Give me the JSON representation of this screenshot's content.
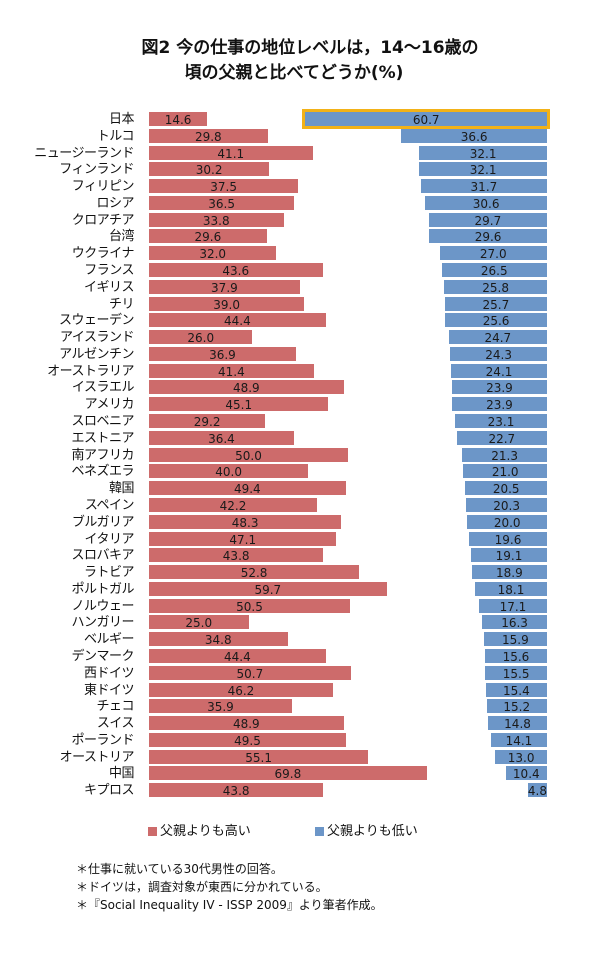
{
  "title": {
    "line1": "図2 今の仕事の地位レベルは，14～16歳の",
    "line2": "頃の父親と比べてどうか(%)"
  },
  "legend": {
    "higher": {
      "label": "父親よりも高い",
      "color": "#cd6b6b"
    },
    "lower": {
      "label": "父親よりも低い",
      "color": "#6c96c8"
    }
  },
  "notes": [
    "＊仕事に就いている30代男性の回答。",
    "＊ドイツは，調査対象が東西に分かれている。",
    "＊『Social Inequality IV - ISSP 2009』より筆者作成。"
  ],
  "highlight": {
    "country": "日本",
    "color": "#f2b218"
  },
  "chart_data": {
    "type": "bar",
    "orientation": "horizontal",
    "title": "図2 今の仕事の地位レベルは，14～16歳の頃の父親と比べてどうか(%)",
    "xlabel": "",
    "ylabel": "",
    "grid": false,
    "legend_position": "bottom",
    "categories": [
      "日本",
      "トルコ",
      "ニュージーランド",
      "フィンランド",
      "フィリピン",
      "ロシア",
      "クロアチア",
      "台湾",
      "ウクライナ",
      "フランス",
      "イギリス",
      "チリ",
      "スウェーデン",
      "アイスランド",
      "アルゼンチン",
      "オーストラリア",
      "イスラエル",
      "アメリカ",
      "スロベニア",
      "エストニア",
      "南アフリカ",
      "ベネズエラ",
      "韓国",
      "スペイン",
      "ブルガリア",
      "イタリア",
      "スロバキア",
      "ラトビア",
      "ポルトガル",
      "ノルウェー",
      "ハンガリー",
      "ベルギー",
      "デンマーク",
      "西ドイツ",
      "東ドイツ",
      "チェコ",
      "スイス",
      "ポーランド",
      "オーストリア",
      "中国",
      "キプロス"
    ],
    "series": [
      {
        "name": "父親よりも高い",
        "color": "#cd6b6b",
        "values": [
          14.6,
          29.8,
          41.1,
          30.2,
          37.5,
          36.5,
          33.8,
          29.6,
          32.0,
          43.6,
          37.9,
          39.0,
          44.4,
          26.0,
          36.9,
          41.4,
          48.9,
          45.1,
          29.2,
          36.4,
          50.0,
          40.0,
          49.4,
          42.2,
          48.3,
          47.1,
          43.8,
          52.8,
          59.7,
          50.5,
          25.0,
          34.8,
          44.4,
          50.7,
          46.2,
          35.9,
          48.9,
          49.5,
          55.1,
          69.8,
          43.8
        ]
      },
      {
        "name": "父親よりも低い",
        "color": "#6c96c8",
        "values": [
          60.7,
          36.6,
          32.1,
          32.1,
          31.7,
          30.6,
          29.7,
          29.6,
          27.0,
          26.5,
          25.8,
          25.7,
          25.6,
          24.7,
          24.3,
          24.1,
          23.9,
          23.9,
          23.1,
          22.7,
          21.3,
          21.0,
          20.5,
          20.3,
          20.0,
          19.6,
          19.1,
          18.9,
          18.1,
          17.1,
          16.3,
          15.9,
          15.6,
          15.5,
          15.4,
          15.2,
          14.8,
          14.1,
          13.0,
          10.4,
          4.8
        ]
      }
    ]
  }
}
